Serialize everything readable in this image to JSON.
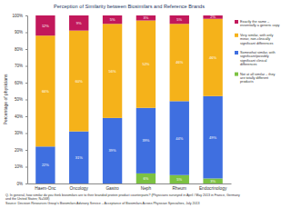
{
  "chart_data": {
    "type": "bar",
    "title": "Perception of Similarity between Biosimilars and Reference Brands",
    "y_label": "Percentage of physicians",
    "categories": [
      "Haem-Onc",
      "Oncology",
      "Gastro",
      "Neph",
      "Rheum",
      "Endocrinology"
    ],
    "stacked": true,
    "data_labels": true,
    "legend": "right",
    "ylim": [
      0,
      100
    ],
    "yticks": [
      {
        "value": 0,
        "label": "0%"
      },
      {
        "value": 10,
        "label": "10%"
      },
      {
        "value": 20,
        "label": "20%"
      },
      {
        "value": 30,
        "label": "30%"
      },
      {
        "value": 40,
        "label": "40%"
      },
      {
        "value": 50,
        "label": "50%"
      },
      {
        "value": 60,
        "label": "60%"
      },
      {
        "value": 70,
        "label": "70%"
      },
      {
        "value": 80,
        "label": "80%"
      },
      {
        "value": 90,
        "label": "90%"
      },
      {
        "value": 100,
        "label": "100%"
      }
    ],
    "series": [
      {
        "name": "Not at all similar – they are totally different products",
        "color": "#7cc242",
        "values": [
          null,
          null,
          null,
          6,
          5,
          3
        ],
        "value_labels": [
          null,
          null,
          null,
          "6%",
          "5%",
          "3%"
        ]
      },
      {
        "name": "Somewhat similar, with significant/possibly significant clinical differences",
        "color": "#3f6fe0",
        "values": [
          22,
          31,
          39,
          39,
          44,
          49
        ],
        "value_labels": [
          "22%",
          "31%",
          "39%",
          "39%",
          "44%",
          "49%"
        ]
      },
      {
        "name": "Very similar, with only minor, non-clinically significant differences",
        "color": "#f5b21a",
        "values": [
          66,
          60,
          56,
          52,
          46,
          46
        ],
        "value_labels": [
          "66%",
          "60%",
          "56%",
          "52%",
          "46%",
          "46%"
        ]
      },
      {
        "name": "Exactly the same – essentially a generic copy",
        "color": "#c2185b",
        "values": [
          12,
          9,
          5,
          3,
          5,
          2
        ],
        "value_labels": [
          "12%",
          "9%",
          "5%",
          "3%",
          "5%",
          "2%"
        ]
      }
    ],
    "annotations": [
      "Q. In general, how similar do you think biosimilars are to their branded protein product counterparts? (Physicians surveyed in April / May 2013 in France, Germany and the United States; N=568)",
      "Source: Decision Resources Group's Biosimilars Advisory Service – Acceptance of Biosimilars Across Physician Specialties, July 2013"
    ]
  }
}
